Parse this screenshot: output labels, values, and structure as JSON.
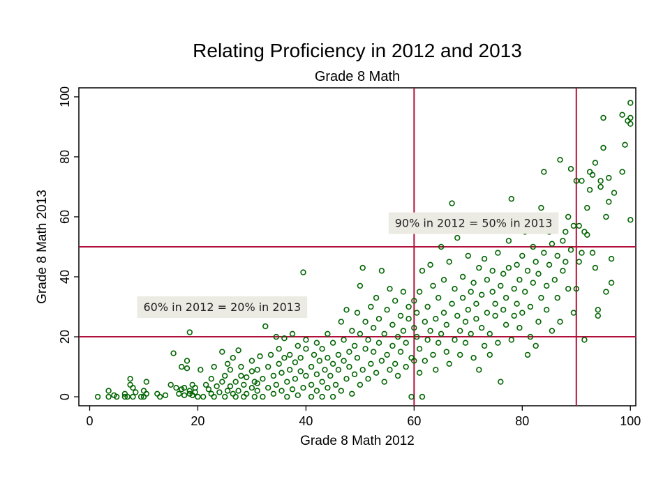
{
  "chart_data": {
    "type": "scatter",
    "title": "Relating Proficiency in 2012 and 2013",
    "subtitle": "Grade 8 Math",
    "xlabel": "Grade 8 Math 2012",
    "ylabel": "Grade 8 Math 2013",
    "xlim": [
      -2,
      101
    ],
    "ylim": [
      -3,
      103
    ],
    "xticks": [
      0,
      20,
      40,
      60,
      80,
      100
    ],
    "yticks": [
      0,
      20,
      40,
      60,
      80,
      100
    ],
    "grid": false,
    "marker_color": "#006400",
    "reference_line_color": "#b0103a",
    "reference_lines": {
      "vertical": [
        60,
        90
      ],
      "horizontal": [
        20,
        50
      ]
    },
    "annotations": [
      {
        "text": "60% in 2012 = 20% in 2013",
        "x": 24.5,
        "y": 30
      },
      {
        "text": "90% in 2012 = 50% in 2013",
        "x": 71,
        "y": 58
      }
    ],
    "points": [
      [
        1.5,
        0
      ],
      [
        3.5,
        0
      ],
      [
        3.5,
        2
      ],
      [
        4.5,
        0.5
      ],
      [
        5,
        0
      ],
      [
        6.5,
        0
      ],
      [
        6.5,
        1
      ],
      [
        7,
        0
      ],
      [
        7.5,
        4
      ],
      [
        7.5,
        6
      ],
      [
        8,
        3
      ],
      [
        8,
        0
      ],
      [
        8.5,
        1.5
      ],
      [
        9.5,
        0
      ],
      [
        10,
        2
      ],
      [
        10,
        0
      ],
      [
        10.5,
        1
      ],
      [
        10.5,
        5
      ],
      [
        12.5,
        1
      ],
      [
        13,
        0
      ],
      [
        14,
        0.5
      ],
      [
        15,
        4
      ],
      [
        15.5,
        14.5
      ],
      [
        16,
        3
      ],
      [
        16.5,
        1
      ],
      [
        17,
        2.5
      ],
      [
        17,
        10
      ],
      [
        17.5,
        0.5
      ],
      [
        17.5,
        3
      ],
      [
        18,
        9.5
      ],
      [
        18,
        12
      ],
      [
        18.5,
        1
      ],
      [
        18.5,
        2
      ],
      [
        18.5,
        21.5
      ],
      [
        19,
        4
      ],
      [
        19,
        0.5
      ],
      [
        19.5,
        1.5
      ],
      [
        19.5,
        3
      ],
      [
        20,
        0
      ],
      [
        20.5,
        9
      ],
      [
        21,
        0
      ],
      [
        21.5,
        4
      ],
      [
        22,
        2.5
      ],
      [
        22.5,
        1
      ],
      [
        22.5,
        6
      ],
      [
        23,
        0
      ],
      [
        23,
        10
      ],
      [
        23.5,
        3.5
      ],
      [
        24,
        1.5
      ],
      [
        24.5,
        5
      ],
      [
        24.5,
        15
      ],
      [
        25,
        0
      ],
      [
        25,
        7
      ],
      [
        25.5,
        2
      ],
      [
        25.5,
        11
      ],
      [
        26,
        3.5
      ],
      [
        26,
        9
      ],
      [
        26.5,
        1
      ],
      [
        26.5,
        13
      ],
      [
        27,
        0
      ],
      [
        27,
        5
      ],
      [
        27.5,
        15.5
      ],
      [
        27.5,
        2
      ],
      [
        28,
        7
      ],
      [
        28,
        10
      ],
      [
        28.5,
        0
      ],
      [
        28.5,
        4
      ],
      [
        29,
        1
      ],
      [
        29,
        6.5
      ],
      [
        30,
        3
      ],
      [
        30,
        8.5
      ],
      [
        30,
        12
      ],
      [
        30.5,
        5
      ],
      [
        30.5,
        0
      ],
      [
        31,
        2
      ],
      [
        31,
        9
      ],
      [
        31,
        4.5
      ],
      [
        31.5,
        13.5
      ],
      [
        32,
        0
      ],
      [
        32,
        6
      ],
      [
        32.5,
        23.5
      ],
      [
        33,
        3
      ],
      [
        33,
        10
      ],
      [
        33.5,
        14
      ],
      [
        34,
        7
      ],
      [
        34,
        1
      ],
      [
        34.5,
        20
      ],
      [
        34.5,
        4
      ],
      [
        35,
        11
      ],
      [
        35,
        16
      ],
      [
        35.5,
        2
      ],
      [
        35.5,
        8
      ],
      [
        36,
        13
      ],
      [
        36,
        19.5
      ],
      [
        36.5,
        5
      ],
      [
        36.5,
        0
      ],
      [
        37,
        9
      ],
      [
        37,
        14
      ],
      [
        37.5,
        2.5
      ],
      [
        37.5,
        21
      ],
      [
        38,
        6
      ],
      [
        38,
        11.5
      ],
      [
        38.5,
        0.5
      ],
      [
        38.5,
        17
      ],
      [
        39,
        8.5
      ],
      [
        39,
        13
      ],
      [
        39.5,
        3
      ],
      [
        39.5,
        41.5
      ],
      [
        40,
        16
      ],
      [
        40,
        7
      ],
      [
        40,
        19
      ],
      [
        41,
        0
      ],
      [
        41,
        4
      ],
      [
        41,
        10
      ],
      [
        41.5,
        14
      ],
      [
        42,
        2
      ],
      [
        42,
        18
      ],
      [
        42,
        7.5
      ],
      [
        42.5,
        12
      ],
      [
        43,
        0
      ],
      [
        43,
        5
      ],
      [
        43,
        16
      ],
      [
        43.5,
        9
      ],
      [
        44,
        21
      ],
      [
        44,
        3
      ],
      [
        44,
        13
      ],
      [
        44.5,
        7
      ],
      [
        45,
        0
      ],
      [
        45,
        11
      ],
      [
        45,
        18
      ],
      [
        45.5,
        4
      ],
      [
        46,
        14
      ],
      [
        46,
        9
      ],
      [
        46.5,
        25
      ],
      [
        46.5,
        2
      ],
      [
        47,
        12
      ],
      [
        47,
        19
      ],
      [
        47.5,
        6
      ],
      [
        47.5,
        29
      ],
      [
        48,
        15
      ],
      [
        48,
        10
      ],
      [
        48.5,
        1
      ],
      [
        48.5,
        22
      ],
      [
        49,
        7.5
      ],
      [
        49,
        17
      ],
      [
        49.5,
        28
      ],
      [
        49.5,
        13
      ],
      [
        50,
        4
      ],
      [
        50,
        21
      ],
      [
        50,
        37
      ],
      [
        50.5,
        9
      ],
      [
        50.5,
        43
      ],
      [
        51,
        16
      ],
      [
        51,
        25
      ],
      [
        51.5,
        6
      ],
      [
        51.5,
        19
      ],
      [
        52,
        11
      ],
      [
        52,
        30
      ],
      [
        52.5,
        23
      ],
      [
        52.5,
        15
      ],
      [
        53,
        8
      ],
      [
        53,
        33
      ],
      [
        53.5,
        18
      ],
      [
        53.5,
        26
      ],
      [
        54,
        12
      ],
      [
        54,
        42
      ],
      [
        54.5,
        5
      ],
      [
        54.5,
        21
      ],
      [
        55,
        14
      ],
      [
        55,
        29
      ],
      [
        55.5,
        36
      ],
      [
        55.5,
        9
      ],
      [
        56,
        17
      ],
      [
        56,
        24
      ],
      [
        56.5,
        11
      ],
      [
        56.5,
        32
      ],
      [
        57,
        20
      ],
      [
        57,
        7
      ],
      [
        57.5,
        27
      ],
      [
        57.5,
        15
      ],
      [
        58,
        22
      ],
      [
        58,
        35
      ],
      [
        58.5,
        10
      ],
      [
        58.5,
        18
      ],
      [
        59,
        30
      ],
      [
        59,
        26
      ],
      [
        59.5,
        13
      ],
      [
        59.5,
        0
      ],
      [
        60,
        23
      ],
      [
        60,
        12
      ],
      [
        60,
        32
      ],
      [
        60.5,
        20
      ],
      [
        60.5,
        28
      ],
      [
        61,
        8
      ],
      [
        61,
        16
      ],
      [
        61,
        35
      ],
      [
        61.5,
        0
      ],
      [
        61.5,
        42
      ],
      [
        62,
        25
      ],
      [
        62,
        12
      ],
      [
        62.5,
        30
      ],
      [
        62.5,
        19
      ],
      [
        63,
        22
      ],
      [
        63,
        44
      ],
      [
        63.5,
        14
      ],
      [
        63.5,
        37
      ],
      [
        64,
        26
      ],
      [
        64,
        9
      ],
      [
        64.5,
        33
      ],
      [
        64.5,
        18
      ],
      [
        65,
        50
      ],
      [
        65,
        21
      ],
      [
        65.5,
        28
      ],
      [
        65.5,
        39
      ],
      [
        66,
        15
      ],
      [
        66,
        24
      ],
      [
        66.5,
        45
      ],
      [
        66.5,
        11
      ],
      [
        67,
        64.5
      ],
      [
        67,
        31
      ],
      [
        67.5,
        19
      ],
      [
        67.5,
        36
      ],
      [
        68,
        27
      ],
      [
        68,
        53
      ],
      [
        68.5,
        22
      ],
      [
        68.5,
        14
      ],
      [
        69,
        33
      ],
      [
        69,
        40
      ],
      [
        69.5,
        25
      ],
      [
        69.5,
        18
      ],
      [
        70,
        29
      ],
      [
        70,
        47
      ],
      [
        70.5,
        35
      ],
      [
        70.5,
        21
      ],
      [
        71,
        13
      ],
      [
        71,
        38
      ],
      [
        71.5,
        26
      ],
      [
        71.5,
        31
      ],
      [
        72,
        43
      ],
      [
        72,
        9
      ],
      [
        72.5,
        23
      ],
      [
        72.5,
        34
      ],
      [
        73,
        17
      ],
      [
        73,
        46
      ],
      [
        73.5,
        28
      ],
      [
        73.5,
        39
      ],
      [
        74,
        21
      ],
      [
        74,
        14
      ],
      [
        74.5,
        35
      ],
      [
        74.5,
        42
      ],
      [
        75,
        27
      ],
      [
        75,
        31
      ],
      [
        75.5,
        18
      ],
      [
        75.5,
        48
      ],
      [
        76,
        5
      ],
      [
        76,
        37
      ],
      [
        76.5,
        29
      ],
      [
        76.5,
        41
      ],
      [
        77,
        24
      ],
      [
        77,
        33
      ],
      [
        77.5,
        43
      ],
      [
        77.5,
        52
      ],
      [
        78,
        19
      ],
      [
        78,
        66
      ],
      [
        78.5,
        36
      ],
      [
        78.5,
        27
      ],
      [
        79,
        44
      ],
      [
        79,
        31
      ],
      [
        79.5,
        23
      ],
      [
        79.5,
        39
      ],
      [
        80,
        47
      ],
      [
        80,
        28
      ],
      [
        80.5,
        35
      ],
      [
        80.5,
        55
      ],
      [
        81,
        14
      ],
      [
        81,
        42
      ],
      [
        81.5,
        30
      ],
      [
        81.5,
        20
      ],
      [
        82,
        50
      ],
      [
        82,
        38
      ],
      [
        82.5,
        17
      ],
      [
        82.5,
        45
      ],
      [
        83,
        25
      ],
      [
        83,
        41
      ],
      [
        83.5,
        63
      ],
      [
        83.5,
        33
      ],
      [
        84,
        75
      ],
      [
        84,
        48
      ],
      [
        84.5,
        29
      ],
      [
        84.5,
        37
      ],
      [
        85,
        44
      ],
      [
        85,
        55
      ],
      [
        85.5,
        22
      ],
      [
        85.5,
        51
      ],
      [
        86,
        39
      ],
      [
        86,
        57
      ],
      [
        86.5,
        47
      ],
      [
        86.5,
        33
      ],
      [
        87,
        79
      ],
      [
        87,
        25
      ],
      [
        87.5,
        52
      ],
      [
        87.5,
        42
      ],
      [
        88,
        55
      ],
      [
        88,
        45
      ],
      [
        88.5,
        36
      ],
      [
        88.5,
        60
      ],
      [
        89,
        76
      ],
      [
        89,
        49
      ],
      [
        89.5,
        28
      ],
      [
        89.5,
        57
      ],
      [
        90,
        72
      ],
      [
        90,
        36
      ],
      [
        90.5,
        45
      ],
      [
        90.5,
        57
      ],
      [
        91,
        48
      ],
      [
        91,
        72
      ],
      [
        91.5,
        19
      ],
      [
        91.5,
        55
      ],
      [
        92,
        63
      ],
      [
        92,
        54
      ],
      [
        92.5,
        75
      ],
      [
        92.5,
        69
      ],
      [
        93,
        48
      ],
      [
        93,
        74
      ],
      [
        93.5,
        43
      ],
      [
        93.5,
        78
      ],
      [
        94,
        27
      ],
      [
        94,
        29
      ],
      [
        94.5,
        70
      ],
      [
        94.5,
        72
      ],
      [
        95,
        93
      ],
      [
        95,
        83
      ],
      [
        95.5,
        60
      ],
      [
        95.5,
        35
      ],
      [
        96,
        73
      ],
      [
        96,
        65
      ],
      [
        96.5,
        46
      ],
      [
        96.5,
        38
      ],
      [
        97,
        68
      ],
      [
        98.5,
        75
      ],
      [
        98.5,
        94
      ],
      [
        99,
        84
      ],
      [
        99.5,
        92
      ],
      [
        100,
        98
      ],
      [
        100,
        91
      ],
      [
        100,
        59
      ],
      [
        100,
        93
      ]
    ]
  }
}
